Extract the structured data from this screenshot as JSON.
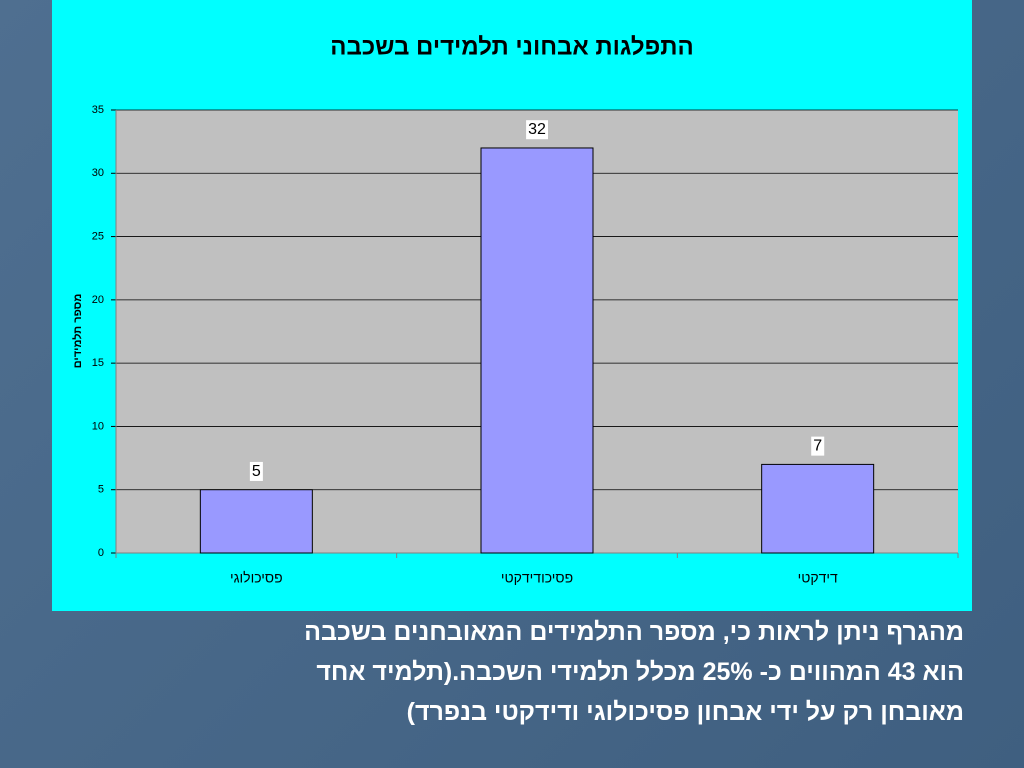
{
  "chart_data": {
    "type": "bar",
    "title": "התפלגות אבחוני תלמידים בשכבה",
    "y_label": "מספר תלמידים",
    "categories": [
      "פסיכולוגי",
      "פסיכודידקטי",
      "דידקטי"
    ],
    "values": [
      5,
      32,
      7
    ],
    "color": "#9999ff",
    "ylim": [
      0,
      35
    ],
    "yticks": [
      0,
      5,
      10,
      15,
      20,
      25,
      30,
      35
    ],
    "grid": true
  },
  "slide_text": [
    "מהגרף ניתן לראות כי, מספר התלמידים המאובחנים בשכבה",
    "הוא 43 המהווים כ- 25% מכלל תלמידי השכבה.(תלמיד אחד",
    "מאובחן רק על ידי אבחון פסיכולוגי ודידקטי בנפרד)"
  ]
}
